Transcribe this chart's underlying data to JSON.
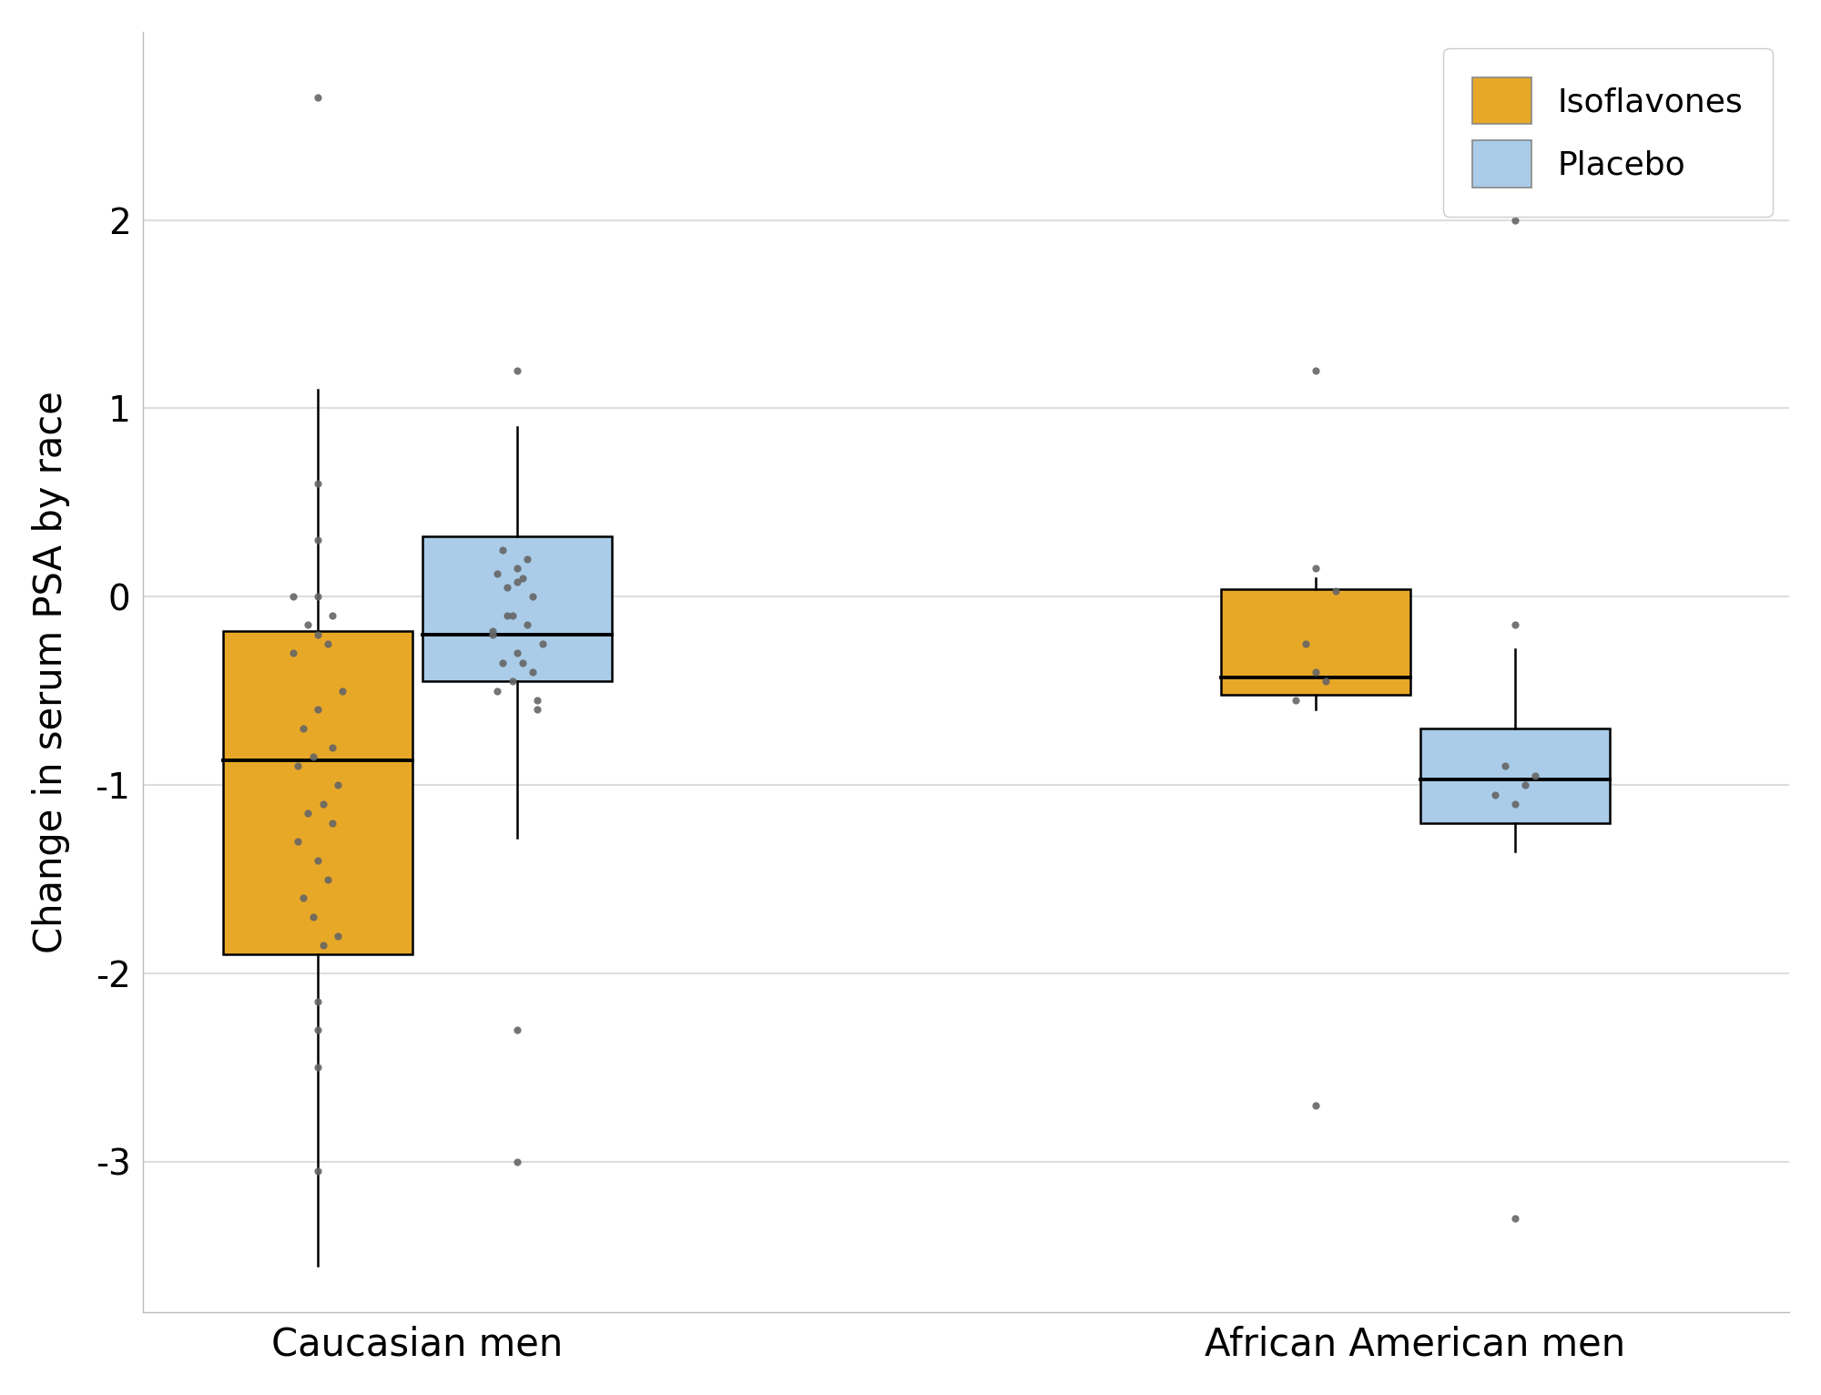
{
  "ylabel": "Change in serum PSA by race",
  "groups": [
    "Caucasian men",
    "African American men"
  ],
  "treatments": [
    "Isoflavones",
    "Placebo"
  ],
  "colors": {
    "Isoflavones": "#E8A827",
    "Placebo": "#AACCE8"
  },
  "box_data": {
    "Caucasian men": {
      "Isoflavones": {
        "q1": -1.9,
        "median": -0.87,
        "q3": -0.18,
        "whislo": -3.55,
        "whishi": 1.1
      },
      "Placebo": {
        "q1": -0.45,
        "median": -0.2,
        "q3": 0.32,
        "whislo": -1.28,
        "whishi": 0.9
      }
    },
    "African American men": {
      "Isoflavones": {
        "q1": -0.52,
        "median": -0.43,
        "q3": 0.04,
        "whislo": -0.6,
        "whishi": 0.1
      },
      "Placebo": {
        "q1": -1.2,
        "median": -0.97,
        "q3": -0.7,
        "whislo": -1.35,
        "whishi": -0.28
      }
    }
  },
  "scatter_data": {
    "Caucasian men": {
      "Isoflavones": {
        "x": [
          0.78,
          0.82,
          0.75,
          0.85,
          0.8,
          0.77,
          0.83,
          0.79,
          0.76,
          0.84,
          0.81,
          0.78,
          0.83,
          0.76,
          0.8,
          0.82,
          0.77,
          0.79,
          0.84,
          0.81,
          0.8,
          0.75,
          0.83
        ],
        "y": [
          -0.15,
          -0.25,
          -0.3,
          -0.5,
          -0.6,
          -0.7,
          -0.8,
          -0.85,
          -0.9,
          -1.0,
          -1.1,
          -1.15,
          -1.2,
          -1.3,
          -1.4,
          -1.5,
          -1.6,
          -1.7,
          -1.8,
          -1.85,
          -0.2,
          0.0,
          -0.1
        ]
      },
      "Placebo": {
        "x": [
          1.18,
          1.22,
          1.15,
          1.25,
          1.2,
          1.17,
          1.23,
          1.19,
          1.16,
          1.24,
          1.21,
          1.18,
          1.23,
          1.16,
          1.2,
          1.22,
          1.17,
          1.19,
          1.24,
          1.21,
          1.2,
          1.15
        ],
        "y": [
          -0.1,
          -0.15,
          -0.2,
          -0.25,
          -0.3,
          -0.35,
          -0.4,
          -0.45,
          -0.5,
          -0.55,
          0.1,
          0.05,
          0.0,
          0.12,
          0.15,
          0.2,
          0.25,
          -0.1,
          -0.6,
          -0.35,
          0.08,
          -0.18
        ]
      }
    },
    "African American men": {
      "Isoflavones": {
        "x": [
          2.78,
          2.82,
          2.76,
          2.84,
          2.8
        ],
        "y": [
          -0.25,
          -0.45,
          -0.55,
          0.03,
          -0.4
        ]
      },
      "Placebo": {
        "x": [
          3.18,
          3.22,
          3.16,
          3.24,
          3.2
        ],
        "y": [
          -0.9,
          -1.0,
          -1.05,
          -0.95,
          -1.1
        ]
      }
    }
  },
  "outlier_data": {
    "Caucasian men": {
      "Isoflavones": {
        "x": [
          0.8,
          0.8,
          0.8,
          0.8,
          0.8,
          0.8,
          0.8,
          0.8
        ],
        "y": [
          2.65,
          0.6,
          0.3,
          0.0,
          -2.15,
          -2.3,
          -2.5,
          -3.05
        ]
      },
      "Placebo": {
        "x": [
          1.2,
          1.2,
          1.2
        ],
        "y": [
          -3.0,
          -2.3,
          1.2
        ]
      }
    },
    "African American men": {
      "Isoflavones": {
        "x": [
          2.8,
          2.8,
          2.8
        ],
        "y": [
          1.2,
          -2.7,
          0.15
        ]
      },
      "Placebo": {
        "x": [
          3.2,
          3.2,
          3.2
        ],
        "y": [
          2.0,
          -3.3,
          -0.15
        ]
      }
    }
  },
  "ylim": [
    -3.8,
    3.0
  ],
  "yticks": [
    -3,
    -2,
    -1,
    0,
    1,
    2
  ],
  "background_color": "#FFFFFF",
  "grid_color": "#DDDDDD",
  "box_positions": {
    "Caucasian men": {
      "Isoflavones": 0.8,
      "Placebo": 1.2
    },
    "African American men": {
      "Isoflavones": 2.8,
      "Placebo": 3.2
    }
  },
  "box_width": 0.38,
  "xtick_positions": [
    1.0,
    3.0
  ],
  "xtick_labels": [
    "Caucasian men",
    "African American men"
  ],
  "figsize": [
    20.0,
    15.32
  ],
  "dpi": 100
}
